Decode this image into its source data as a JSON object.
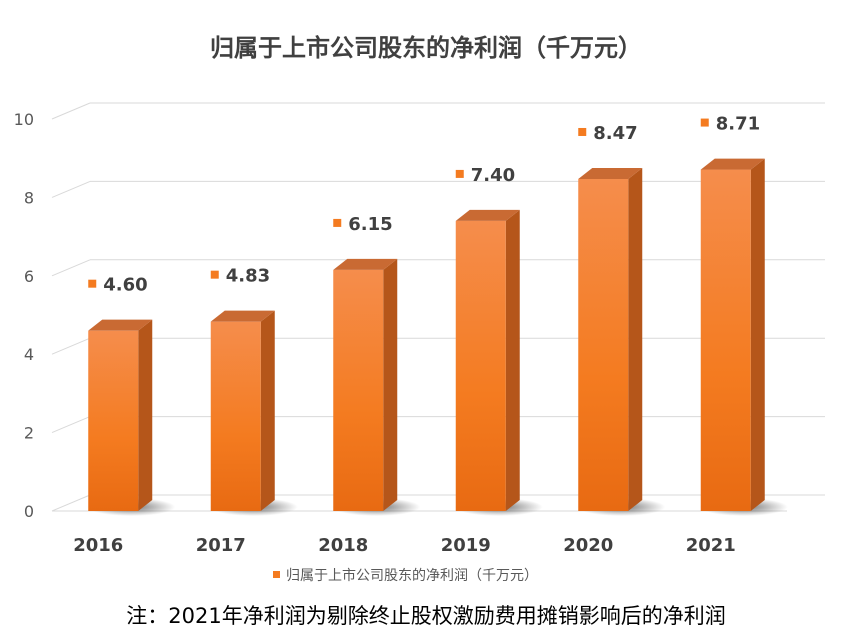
{
  "chart_data": {
    "type": "bar",
    "title": "归属于上市公司股东的净利润（千万元）",
    "categories": [
      "2016",
      "2017",
      "2018",
      "2019",
      "2020",
      "2021"
    ],
    "series": [
      {
        "name": "归属于上市公司股东的净利润（千万元）",
        "values": [
          4.6,
          4.83,
          6.15,
          7.4,
          8.47,
          8.71
        ],
        "labels": [
          "4.60",
          "4.83",
          "6.15",
          "7.40",
          "8.47",
          "8.71"
        ]
      }
    ],
    "ylim": [
      0,
      10
    ],
    "yticks": [
      0,
      2,
      4,
      6,
      8,
      10
    ],
    "xlabel": "",
    "ylabel": "",
    "grid": true,
    "legend": "bottom",
    "style": "3d-column",
    "colors": {
      "bar": "#F47B20",
      "bar_side": "#B5561A",
      "bar_top": "#C96A33",
      "marker": "#F47B20",
      "grid": "#D9D9D9"
    }
  },
  "note": "注：2021年净利润为剔除终止股权激励费用摊销影响后的净利润"
}
